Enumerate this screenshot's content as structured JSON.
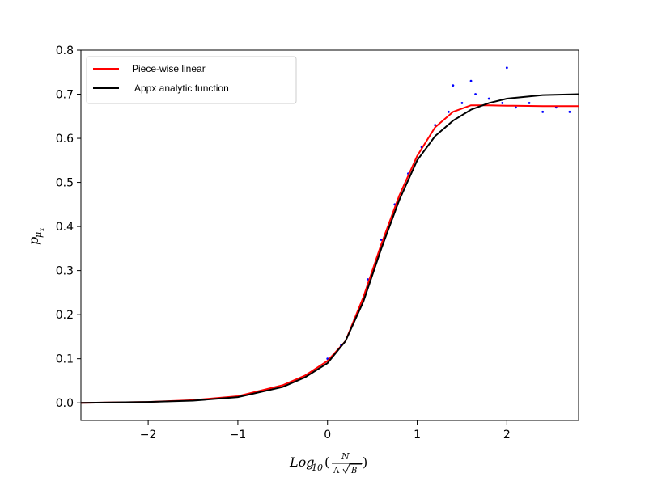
{
  "chart_data": {
    "type": "line",
    "title": "",
    "xlabel": {
      "main": "Log",
      "sub": "10",
      "open": "(",
      "numerator": "N",
      "denominator_a": "A",
      "denominator_b": "B",
      "close": ")"
    },
    "ylabel": {
      "main": "p",
      "sub": "μ",
      "subsub": "x"
    },
    "xlim": [
      -2.75,
      2.8
    ],
    "ylim": [
      -0.04,
      0.8
    ],
    "xticks": [
      -2,
      -1,
      0,
      1,
      2
    ],
    "xtick_labels": [
      "−2",
      "−1",
      "0",
      "1",
      "2"
    ],
    "yticks": [
      0.0,
      0.1,
      0.2,
      0.3,
      0.4,
      0.5,
      0.6,
      0.7,
      0.8
    ],
    "ytick_labels": [
      "0.0",
      "0.1",
      "0.2",
      "0.3",
      "0.4",
      "0.5",
      "0.6",
      "0.7",
      "0.8"
    ],
    "grid": false,
    "legend_position": "top-left",
    "colors": {
      "scatter": "#0000ff",
      "piecewise": "#ff0000",
      "analytic": "#000000"
    },
    "series": [
      {
        "name": "Piece-wise linear",
        "kind": "line",
        "x": [
          -2.75,
          -2.0,
          -1.5,
          -1.0,
          -0.5,
          -0.25,
          0.0,
          0.2,
          0.4,
          0.6,
          0.8,
          1.0,
          1.2,
          1.4,
          1.6,
          1.8,
          2.0,
          2.4,
          2.8
        ],
        "y": [
          0.0,
          0.002,
          0.006,
          0.015,
          0.04,
          0.062,
          0.095,
          0.14,
          0.24,
          0.36,
          0.47,
          0.56,
          0.625,
          0.66,
          0.675,
          0.675,
          0.674,
          0.673,
          0.673
        ]
      },
      {
        "name": "Appx analytic function",
        "kind": "line",
        "x": [
          -2.75,
          -2.0,
          -1.5,
          -1.0,
          -0.5,
          -0.25,
          0.0,
          0.2,
          0.4,
          0.6,
          0.8,
          1.0,
          1.2,
          1.4,
          1.6,
          1.8,
          2.0,
          2.4,
          2.8
        ],
        "y": [
          0.0,
          0.002,
          0.005,
          0.013,
          0.036,
          0.058,
          0.09,
          0.14,
          0.23,
          0.35,
          0.46,
          0.55,
          0.605,
          0.64,
          0.665,
          0.68,
          0.69,
          0.698,
          0.7
        ]
      },
      {
        "name": "",
        "kind": "scatter",
        "x": [
          0.0,
          0.15,
          0.3,
          0.45,
          0.6,
          0.75,
          0.9,
          1.05,
          1.2,
          1.35,
          1.5,
          1.65,
          1.8,
          1.95,
          2.1,
          2.25,
          2.4,
          2.55,
          2.7,
          1.4,
          1.6,
          2.0
        ],
        "y": [
          0.1,
          0.13,
          0.19,
          0.28,
          0.37,
          0.45,
          0.52,
          0.58,
          0.63,
          0.66,
          0.68,
          0.7,
          0.69,
          0.68,
          0.67,
          0.68,
          0.66,
          0.67,
          0.66,
          0.72,
          0.73,
          0.76
        ]
      }
    ]
  }
}
